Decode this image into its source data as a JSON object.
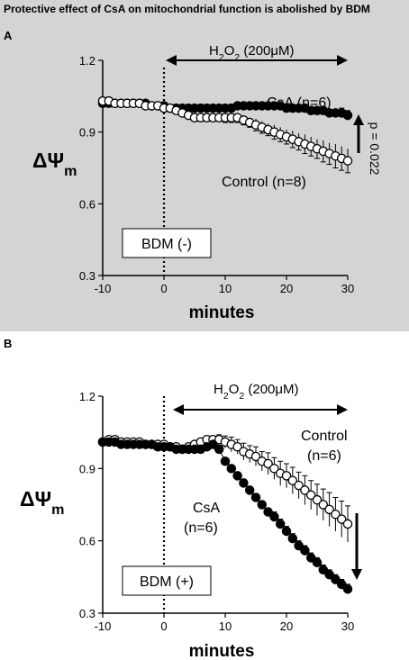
{
  "title": "Protective effect of CsA on mitochondrial function is abolished by BDM",
  "chart_data": [
    {
      "type": "scatter",
      "panel_label": "A",
      "xlabel": "minutes",
      "ylabel": "ΔΨm",
      "xlim": [
        -10,
        30
      ],
      "ylim": [
        0.3,
        1.2
      ],
      "x_ticks": [
        "-10",
        "0",
        "10",
        "20",
        "30"
      ],
      "y_ticks": [
        "0.3",
        "0.6",
        "0.9",
        "1.2"
      ],
      "treatment_marker_x": 0,
      "treatment_label": "H2O2 (200μM)",
      "box_label": "BDM (-)",
      "significance_label": "p = 0.022",
      "series": [
        {
          "name": "CsA (n=6)",
          "marker": "filled",
          "x": [
            -10,
            -9,
            -8,
            -7,
            -6,
            -5,
            -4,
            -3,
            -2,
            -1,
            0,
            1,
            2,
            3,
            4,
            5,
            6,
            7,
            8,
            9,
            10,
            11,
            12,
            13,
            14,
            15,
            16,
            17,
            18,
            19,
            20,
            21,
            22,
            23,
            24,
            25,
            26,
            27,
            28,
            29,
            30
          ],
          "y": [
            1.02,
            1.02,
            1.02,
            1.02,
            1.02,
            1.02,
            1.02,
            1.02,
            1.01,
            1.01,
            1.01,
            1.0,
            1.0,
            1.0,
            1.0,
            1.0,
            1.0,
            1.0,
            1.0,
            1.0,
            1.0,
            1.0,
            1.01,
            1.01,
            1.01,
            1.01,
            1.01,
            1.01,
            1.01,
            1.01,
            1.0,
            1.0,
            1.0,
            1.0,
            0.99,
            0.99,
            0.99,
            0.98,
            0.98,
            0.98,
            0.97
          ],
          "err": [
            0.01,
            0.01,
            0.01,
            0.01,
            0.01,
            0.01,
            0.01,
            0.01,
            0.01,
            0.01,
            0.01,
            0.01,
            0.01,
            0.01,
            0.01,
            0.01,
            0.01,
            0.01,
            0.01,
            0.01,
            0.01,
            0.01,
            0.01,
            0.01,
            0.01,
            0.01,
            0.01,
            0.01,
            0.01,
            0.01,
            0.01,
            0.01,
            0.01,
            0.01,
            0.01,
            0.01,
            0.01,
            0.01,
            0.01,
            0.02,
            0.02
          ]
        },
        {
          "name": "Control (n=8)",
          "marker": "open",
          "x": [
            -10,
            -9,
            -8,
            -7,
            -6,
            -5,
            -4,
            -3,
            -2,
            -1,
            0,
            1,
            2,
            3,
            4,
            5,
            6,
            7,
            8,
            9,
            10,
            11,
            12,
            13,
            14,
            15,
            16,
            17,
            18,
            19,
            20,
            21,
            22,
            23,
            24,
            25,
            26,
            27,
            28,
            29,
            30
          ],
          "y": [
            1.03,
            1.03,
            1.02,
            1.02,
            1.02,
            1.02,
            1.02,
            1.01,
            1.01,
            1.01,
            1.0,
            1.0,
            0.99,
            0.98,
            0.97,
            0.96,
            0.96,
            0.96,
            0.96,
            0.96,
            0.96,
            0.96,
            0.96,
            0.95,
            0.94,
            0.93,
            0.92,
            0.91,
            0.9,
            0.89,
            0.88,
            0.87,
            0.86,
            0.85,
            0.84,
            0.83,
            0.82,
            0.81,
            0.8,
            0.79,
            0.78
          ],
          "err": [
            0.01,
            0.01,
            0.01,
            0.01,
            0.01,
            0.01,
            0.01,
            0.01,
            0.01,
            0.01,
            0.01,
            0.01,
            0.01,
            0.01,
            0.015,
            0.015,
            0.015,
            0.015,
            0.015,
            0.015,
            0.02,
            0.02,
            0.02,
            0.02,
            0.02,
            0.025,
            0.025,
            0.025,
            0.03,
            0.03,
            0.03,
            0.035,
            0.035,
            0.04,
            0.04,
            0.04,
            0.045,
            0.045,
            0.05,
            0.05,
            0.05
          ]
        }
      ]
    },
    {
      "type": "scatter",
      "panel_label": "B",
      "xlabel": "minutes",
      "ylabel": "ΔΨm",
      "xlim": [
        -10,
        30
      ],
      "ylim": [
        0.3,
        1.2
      ],
      "x_ticks": [
        "-10",
        "0",
        "10",
        "20",
        "30"
      ],
      "y_ticks": [
        "0.3",
        "0.6",
        "0.9",
        "1.2"
      ],
      "treatment_marker_x": 0,
      "treatment_label": "H2O2 (200μM)",
      "box_label": "BDM (+)",
      "series": [
        {
          "name": "Control (n=6)",
          "marker": "open",
          "x": [
            -10,
            -9,
            -8,
            -7,
            -6,
            -5,
            -4,
            -3,
            -2,
            -1,
            0,
            1,
            2,
            3,
            4,
            5,
            6,
            7,
            8,
            9,
            10,
            11,
            12,
            13,
            14,
            15,
            16,
            17,
            18,
            19,
            20,
            21,
            22,
            23,
            24,
            25,
            26,
            27,
            28,
            29,
            30
          ],
          "y": [
            1.01,
            1.02,
            1.02,
            1.01,
            1.01,
            1.01,
            1.01,
            1.0,
            1.0,
            1.0,
            1.0,
            0.99,
            0.99,
            0.98,
            0.99,
            1.0,
            1.01,
            1.02,
            1.02,
            1.02,
            1.01,
            1.0,
            0.99,
            0.97,
            0.96,
            0.95,
            0.93,
            0.92,
            0.9,
            0.88,
            0.87,
            0.85,
            0.83,
            0.81,
            0.79,
            0.77,
            0.75,
            0.73,
            0.71,
            0.69,
            0.67
          ],
          "err": [
            0.01,
            0.01,
            0.01,
            0.01,
            0.01,
            0.01,
            0.01,
            0.01,
            0.01,
            0.01,
            0.01,
            0.01,
            0.01,
            0.01,
            0.01,
            0.01,
            0.01,
            0.015,
            0.015,
            0.02,
            0.025,
            0.03,
            0.03,
            0.035,
            0.035,
            0.04,
            0.04,
            0.045,
            0.045,
            0.05,
            0.05,
            0.055,
            0.055,
            0.06,
            0.06,
            0.065,
            0.065,
            0.07,
            0.07,
            0.075,
            0.075
          ]
        },
        {
          "name": "CsA (n=6)",
          "marker": "filled",
          "x": [
            -10,
            -9,
            -8,
            -7,
            -6,
            -5,
            -4,
            -3,
            -2,
            -1,
            0,
            1,
            2,
            3,
            4,
            5,
            6,
            7,
            8,
            9,
            10,
            11,
            12,
            13,
            14,
            15,
            16,
            17,
            18,
            19,
            20,
            21,
            22,
            23,
            24,
            25,
            26,
            27,
            28,
            29,
            30
          ],
          "y": [
            1.01,
            1.01,
            1.01,
            1.0,
            1.0,
            1.0,
            1.0,
            1.0,
            1.0,
            0.99,
            0.99,
            0.99,
            0.98,
            0.98,
            0.98,
            0.98,
            0.98,
            0.99,
            1.0,
            0.98,
            0.93,
            0.9,
            0.87,
            0.84,
            0.81,
            0.78,
            0.75,
            0.72,
            0.7,
            0.67,
            0.64,
            0.61,
            0.58,
            0.56,
            0.53,
            0.51,
            0.48,
            0.46,
            0.44,
            0.42,
            0.4
          ],
          "err": [
            0.01,
            0.01,
            0.01,
            0.01,
            0.01,
            0.01,
            0.01,
            0.01,
            0.01,
            0.01,
            0.01,
            0.01,
            0.01,
            0.01,
            0.01,
            0.01,
            0.01,
            0.01,
            0.01,
            0.01,
            0.01,
            0.01,
            0.015,
            0.015,
            0.015,
            0.015,
            0.015,
            0.015,
            0.02,
            0.02,
            0.02,
            0.02,
            0.02,
            0.02,
            0.02,
            0.02,
            0.02,
            0.02,
            0.02,
            0.02,
            0.02
          ]
        }
      ]
    }
  ]
}
